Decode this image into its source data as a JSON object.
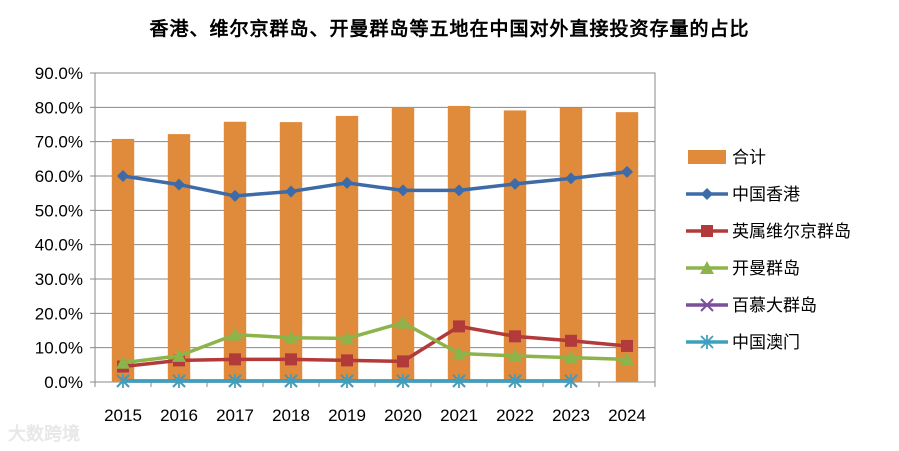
{
  "chart_data": {
    "type": "bar+line",
    "title": "香港、维尔京群岛、开曼群岛等五地在中国对外直接投资存量的占比",
    "categories": [
      "2015",
      "2016",
      "2017",
      "2018",
      "2019",
      "2020",
      "2021",
      "2022",
      "2023",
      "2024"
    ],
    "ylim": [
      0,
      90
    ],
    "yticks": [
      "0.0%",
      "10.0%",
      "20.0%",
      "30.0%",
      "40.0%",
      "50.0%",
      "60.0%",
      "70.0%",
      "80.0%",
      "90.0%"
    ],
    "grid": true,
    "legend_position": "right",
    "series": [
      {
        "name": "合计",
        "type": "bar",
        "color": "#e08a3c",
        "values": [
          70.8,
          72.2,
          75.8,
          75.7,
          77.5,
          79.8,
          80.4,
          79.1,
          79.9,
          78.6
        ]
      },
      {
        "name": "中国香港",
        "type": "line",
        "marker": "diamond",
        "color": "#3d6ba8",
        "values": [
          60.0,
          57.5,
          54.2,
          55.5,
          58.0,
          55.8,
          55.8,
          57.7,
          59.3,
          61.2
        ]
      },
      {
        "name": "英属维尔京群岛",
        "type": "line",
        "marker": "square",
        "color": "#b23a3a",
        "values": [
          4.5,
          6.3,
          6.6,
          6.6,
          6.3,
          6.0,
          16.2,
          13.3,
          12.0,
          10.5
        ]
      },
      {
        "name": "开曼群岛",
        "type": "line",
        "marker": "triangle",
        "color": "#8db44a",
        "values": [
          5.6,
          7.6,
          13.8,
          12.9,
          12.7,
          17.3,
          8.3,
          7.6,
          7.1,
          6.6
        ]
      },
      {
        "name": "百慕大群岛",
        "type": "line",
        "marker": "x",
        "color": "#7a4f9b",
        "values": [
          0.3,
          0.3,
          0.3,
          0.3,
          0.3,
          0.3,
          0.3,
          0.3,
          0.3,
          null
        ]
      },
      {
        "name": "中国澳门",
        "type": "line",
        "marker": "asterisk",
        "color": "#3fa0bd",
        "values": [
          0.3,
          0.3,
          0.3,
          0.3,
          0.3,
          0.3,
          0.3,
          0.3,
          0.3,
          null
        ]
      }
    ]
  },
  "watermark": "大数跨境"
}
